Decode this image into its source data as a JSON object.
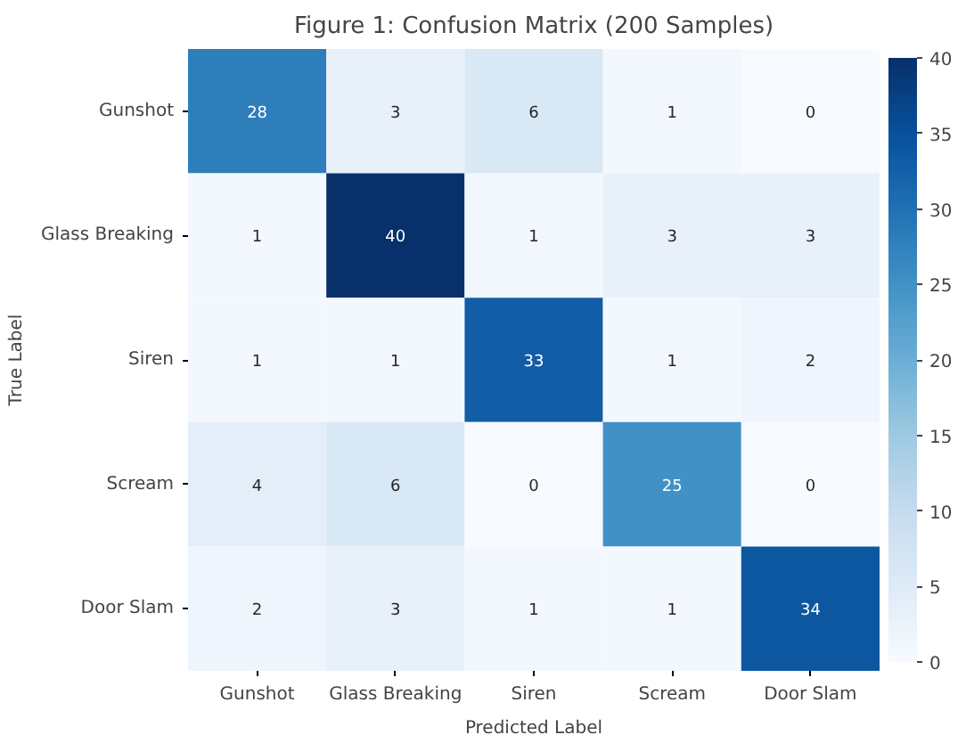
{
  "chart_data": {
    "type": "heatmap",
    "title": "Figure 1: Confusion Matrix (200 Samples)",
    "xlabel": "Predicted Label",
    "ylabel": "True Label",
    "categories": [
      "Gunshot",
      "Glass Breaking",
      "Siren",
      "Scream",
      "Door Slam"
    ],
    "y_categories": [
      "Gunshot",
      "Glass Breaking",
      "Siren",
      "Scream",
      "Door Slam"
    ],
    "cells": [
      [
        28,
        3,
        6,
        1,
        0
      ],
      [
        1,
        40,
        1,
        3,
        3
      ],
      [
        1,
        1,
        33,
        1,
        2
      ],
      [
        4,
        6,
        0,
        25,
        0
      ],
      [
        2,
        3,
        1,
        1,
        34
      ]
    ],
    "clim": [
      0,
      40
    ],
    "cticks": [
      0,
      5,
      10,
      15,
      20,
      25,
      30,
      35,
      40
    ],
    "data_labels": true
  }
}
